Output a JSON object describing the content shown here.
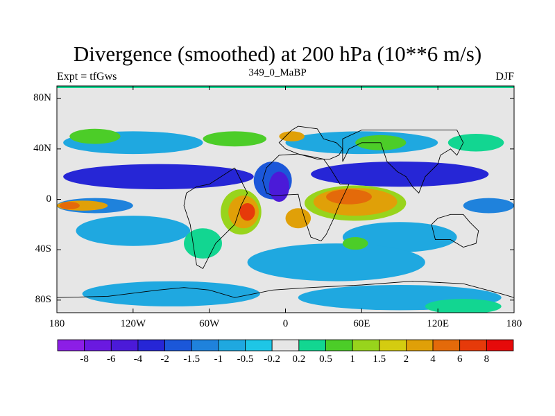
{
  "title": "Divergence (smoothed) at 200 hPa (10**6 m/s)",
  "left_label": "Expt = tfGws",
  "center_label": "349_0_MaBP",
  "right_label": "DJF",
  "map": {
    "projection": "cylindrical-equidistant",
    "lon_range": [
      -180,
      180
    ],
    "lat_range": [
      -90,
      90
    ],
    "x_ticks": [
      {
        "value": -180,
        "label": "180"
      },
      {
        "value": -120,
        "label": "120W"
      },
      {
        "value": -60,
        "label": "60W"
      },
      {
        "value": 0,
        "label": "0"
      },
      {
        "value": 60,
        "label": "60E"
      },
      {
        "value": 120,
        "label": "120E"
      },
      {
        "value": 180,
        "label": "180"
      }
    ],
    "y_ticks": [
      {
        "value": 80,
        "label": "80N"
      },
      {
        "value": 40,
        "label": "40N"
      },
      {
        "value": 0,
        "label": "0"
      },
      {
        "value": -40,
        "label": "40S"
      },
      {
        "value": -80,
        "label": "80S"
      }
    ]
  },
  "colorbar": {
    "colors": [
      "#8c1ee6",
      "#6a19e0",
      "#4b1ad8",
      "#2626d6",
      "#1b57d9",
      "#1f82dc",
      "#1fa8e0",
      "#1ec6e6",
      "#e6e6e6",
      "#12d691",
      "#4ccd28",
      "#98d41c",
      "#d4cc10",
      "#e0a008",
      "#e46a0a",
      "#e63a0a",
      "#e60a0a"
    ],
    "labels": [
      "-8",
      "-6",
      "-4",
      "-2",
      "-1.5",
      "-1",
      "-0.5",
      "-0.2",
      "0.2",
      "0.5",
      "1",
      "1.5",
      "2",
      "4",
      "6",
      "8"
    ]
  },
  "fields": [
    {
      "color": "#1fa8e0",
      "cx": -120,
      "cy": 45,
      "rx": 55,
      "ry": 9
    },
    {
      "color": "#1fa8e0",
      "cx": 60,
      "cy": 45,
      "rx": 60,
      "ry": 9
    },
    {
      "color": "#4ccd28",
      "cx": -150,
      "cy": 50,
      "rx": 20,
      "ry": 6
    },
    {
      "color": "#4ccd28",
      "cx": -40,
      "cy": 48,
      "rx": 25,
      "ry": 6
    },
    {
      "color": "#4ccd28",
      "cx": 75,
      "cy": 45,
      "rx": 20,
      "ry": 6
    },
    {
      "color": "#12d691",
      "cx": 150,
      "cy": 45,
      "rx": 22,
      "ry": 7
    },
    {
      "color": "#e0a008",
      "cx": 5,
      "cy": 50,
      "rx": 10,
      "ry": 4
    },
    {
      "color": "#2626d6",
      "cx": -100,
      "cy": 18,
      "rx": 75,
      "ry": 10
    },
    {
      "color": "#2626d6",
      "cx": 90,
      "cy": 20,
      "rx": 70,
      "ry": 10
    },
    {
      "color": "#1b57d9",
      "cx": -10,
      "cy": 15,
      "rx": 15,
      "ry": 15
    },
    {
      "color": "#4b1ad8",
      "cx": -5,
      "cy": 10,
      "rx": 8,
      "ry": 12
    },
    {
      "color": "#1f82dc",
      "cx": -150,
      "cy": -5,
      "rx": 30,
      "ry": 6
    },
    {
      "color": "#e0a008",
      "cx": -160,
      "cy": -5,
      "rx": 20,
      "ry": 4
    },
    {
      "color": "#e46a0a",
      "cx": -170,
      "cy": -5,
      "rx": 8,
      "ry": 3
    },
    {
      "color": "#1f82dc",
      "cx": 160,
      "cy": -5,
      "rx": 20,
      "ry": 6
    },
    {
      "color": "#98d41c",
      "cx": -35,
      "cy": -10,
      "rx": 16,
      "ry": 18
    },
    {
      "color": "#e0a008",
      "cx": -33,
      "cy": -10,
      "rx": 12,
      "ry": 13
    },
    {
      "color": "#e63a0a",
      "cx": -30,
      "cy": -10,
      "rx": 6,
      "ry": 7
    },
    {
      "color": "#98d41c",
      "cx": 55,
      "cy": -3,
      "rx": 40,
      "ry": 14
    },
    {
      "color": "#e0a008",
      "cx": 55,
      "cy": -2,
      "rx": 33,
      "ry": 11
    },
    {
      "color": "#e46a0a",
      "cx": 50,
      "cy": 2,
      "rx": 18,
      "ry": 6
    },
    {
      "color": "#e0a008",
      "cx": 10,
      "cy": -15,
      "rx": 10,
      "ry": 8
    },
    {
      "color": "#1fa8e0",
      "cx": -120,
      "cy": -25,
      "rx": 45,
      "ry": 12
    },
    {
      "color": "#1fa8e0",
      "cx": 90,
      "cy": -30,
      "rx": 45,
      "ry": 12
    },
    {
      "color": "#1fa8e0",
      "cx": 40,
      "cy": -50,
      "rx": 70,
      "ry": 15
    },
    {
      "color": "#12d691",
      "cx": -65,
      "cy": -35,
      "rx": 15,
      "ry": 12
    },
    {
      "color": "#4ccd28",
      "cx": 55,
      "cy": -35,
      "rx": 10,
      "ry": 5
    },
    {
      "color": "#1fa8e0",
      "cx": -90,
      "cy": -75,
      "rx": 70,
      "ry": 10
    },
    {
      "color": "#1fa8e0",
      "cx": 90,
      "cy": -78,
      "rx": 80,
      "ry": 10
    },
    {
      "color": "#12d691",
      "cx": 140,
      "cy": -85,
      "rx": 30,
      "ry": 6
    }
  ],
  "coastlines": [
    [
      [
        5,
        55
      ],
      [
        10,
        58
      ],
      [
        25,
        56
      ],
      [
        30,
        48
      ],
      [
        40,
        45
      ],
      [
        45,
        40
      ],
      [
        42,
        35
      ],
      [
        35,
        32
      ],
      [
        25,
        32
      ],
      [
        10,
        36
      ],
      [
        0,
        40
      ],
      [
        -5,
        45
      ],
      [
        5,
        55
      ]
    ],
    [
      [
        -15,
        25
      ],
      [
        -18,
        15
      ],
      [
        -15,
        5
      ],
      [
        -10,
        3
      ],
      [
        10,
        4
      ],
      [
        12,
        -5
      ],
      [
        15,
        -15
      ],
      [
        20,
        -30
      ],
      [
        28,
        -33
      ],
      [
        32,
        -28
      ],
      [
        38,
        -15
      ],
      [
        42,
        -5
      ],
      [
        50,
        12
      ],
      [
        43,
        12
      ],
      [
        35,
        25
      ],
      [
        30,
        32
      ],
      [
        10,
        36
      ],
      [
        -5,
        35
      ],
      [
        -15,
        25
      ]
    ],
    [
      [
        45,
        30
      ],
      [
        50,
        40
      ],
      [
        60,
        45
      ],
      [
        75,
        45
      ],
      [
        80,
        30
      ],
      [
        88,
        22
      ],
      [
        95,
        18
      ],
      [
        100,
        10
      ],
      [
        105,
        5
      ],
      [
        110,
        18
      ],
      [
        120,
        28
      ],
      [
        122,
        35
      ],
      [
        130,
        40
      ],
      [
        135,
        35
      ],
      [
        140,
        45
      ],
      [
        135,
        55
      ],
      [
        120,
        55
      ],
      [
        90,
        55
      ],
      [
        60,
        55
      ],
      [
        45,
        48
      ],
      [
        45,
        30
      ]
    ],
    [
      [
        -40,
        25
      ],
      [
        -35,
        15
      ],
      [
        -30,
        5
      ],
      [
        -35,
        -5
      ],
      [
        -40,
        -20
      ],
      [
        -48,
        -28
      ],
      [
        -55,
        -35
      ],
      [
        -65,
        -55
      ],
      [
        -70,
        -52
      ],
      [
        -72,
        -40
      ],
      [
        -75,
        -20
      ],
      [
        -80,
        -5
      ],
      [
        -78,
        5
      ],
      [
        -70,
        10
      ],
      [
        -60,
        12
      ],
      [
        -40,
        25
      ]
    ],
    [
      [
        115,
        -20
      ],
      [
        120,
        -15
      ],
      [
        130,
        -12
      ],
      [
        140,
        -12
      ],
      [
        145,
        -18
      ],
      [
        152,
        -25
      ],
      [
        150,
        -35
      ],
      [
        140,
        -38
      ],
      [
        130,
        -32
      ],
      [
        118,
        -32
      ],
      [
        115,
        -20
      ]
    ],
    [
      [
        -180,
        -78
      ],
      [
        -140,
        -77
      ],
      [
        -100,
        -72
      ],
      [
        -80,
        -70
      ],
      [
        -60,
        -72
      ],
      [
        -40,
        -78
      ],
      [
        -10,
        -72
      ],
      [
        20,
        -70
      ],
      [
        60,
        -68
      ],
      [
        100,
        -65
      ],
      [
        140,
        -67
      ],
      [
        170,
        -75
      ],
      [
        180,
        -78
      ]
    ]
  ]
}
